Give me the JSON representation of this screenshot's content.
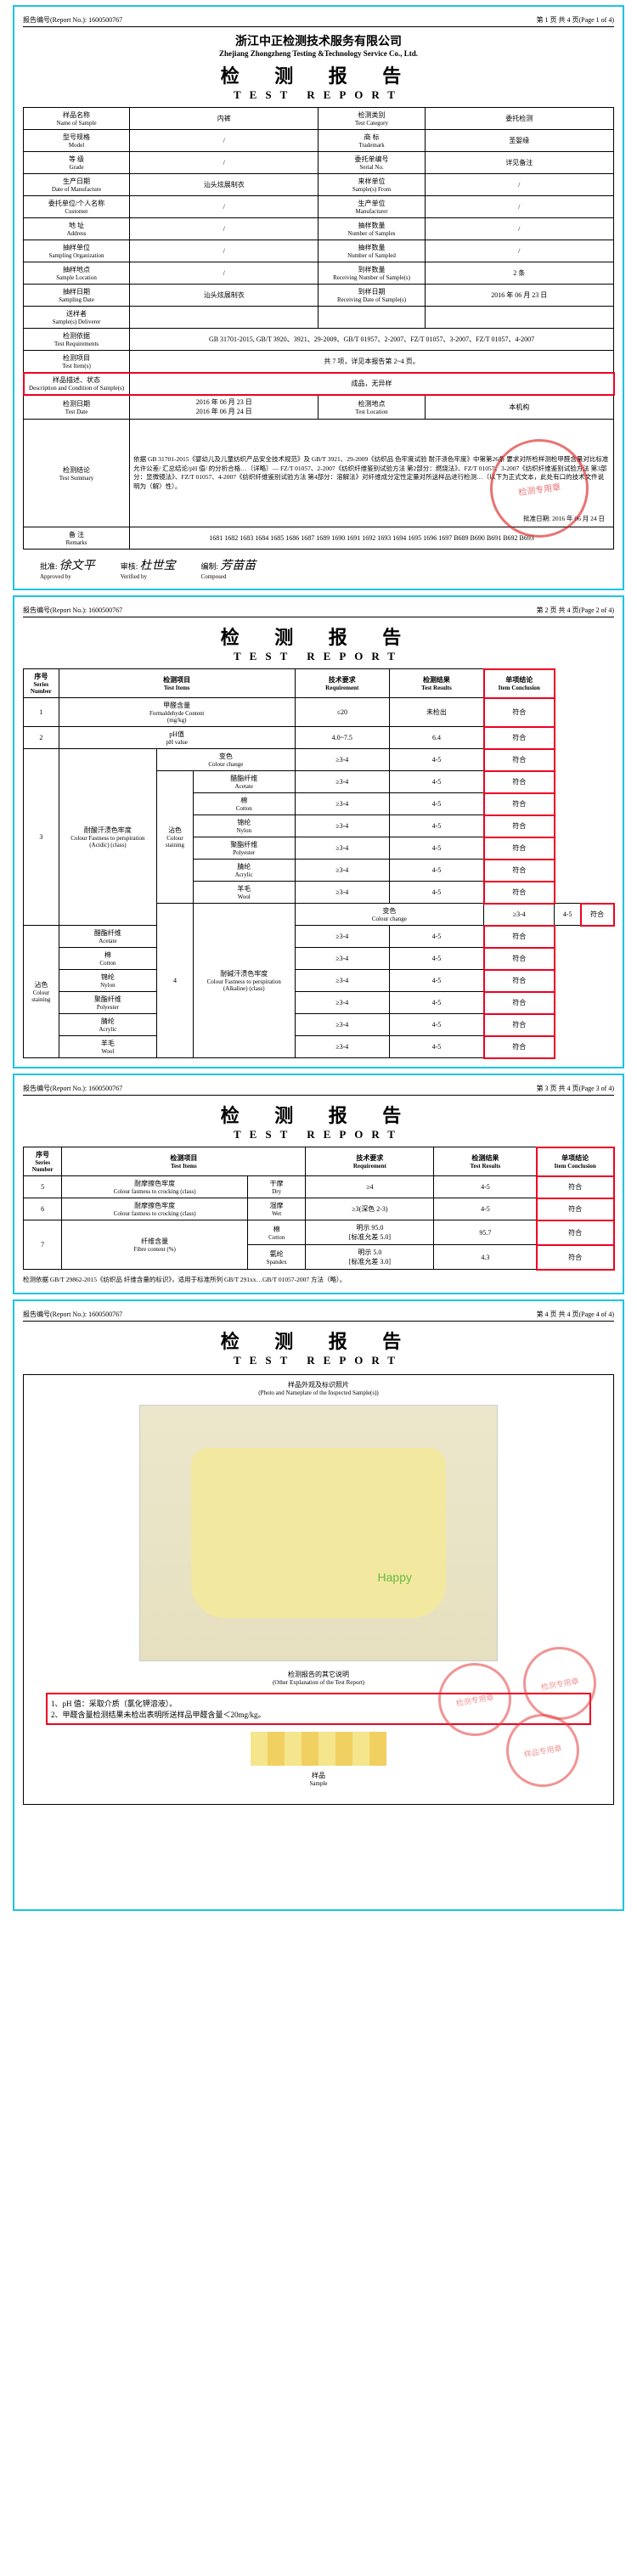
{
  "report_no_label": "报告编号(Report No.):",
  "report_no": "1600500767",
  "company": {
    "cn": "浙江中正检测技术服务有限公司",
    "en": "Zhejiang Zhongzheng Testing &Technology Service Co., Ltd."
  },
  "title": {
    "cn": "检 测 报 告",
    "en": "TEST REPORT"
  },
  "pages": {
    "p1": "第 1 页 共 4 页(Page 1 of 4)",
    "p2": "第 2 页 共 4 页(Page 2 of 4)",
    "p3": "第 3 页 共 4 页(Page 3 of 4)",
    "p4": "第 4 页 共 4 页(Page 4 of 4)"
  },
  "info_rows": [
    {
      "l1_cn": "样品名称",
      "l1_en": "Name of Sample",
      "v1": "内裤",
      "l2_cn": "检测类别",
      "l2_en": "Test Category",
      "v2": "委托检测"
    },
    {
      "l1_cn": "型号规格",
      "l1_en": "Model",
      "v1": "/",
      "l2_cn": "商 标",
      "l2_en": "Trademark",
      "v2": "圣婴缘"
    },
    {
      "l1_cn": "等 级",
      "l1_en": "Grade",
      "v1": "/",
      "l2_cn": "委托单编号",
      "l2_en": "Serial No.",
      "v2": "详见备注"
    },
    {
      "l1_cn": "生产日期",
      "l1_en": "Date of Manufacture",
      "v1": "汕头炫展制衣",
      "l2_cn": "来样单位",
      "l2_en": "Sample(s) From",
      "v2": "/"
    },
    {
      "l1_cn": "委托单位/个人名称",
      "l1_en": "Customer",
      "v1": "/",
      "l2_cn": "生产单位",
      "l2_en": "Manufacturer",
      "v2": "/"
    },
    {
      "l1_cn": "地 址",
      "l1_en": "Address",
      "v1": "/",
      "l2_cn": "抽样数量",
      "l2_en": "Number of Samples",
      "v2": "/"
    },
    {
      "l1_cn": "抽样单位",
      "l1_en": "Sampling Organization",
      "v1": "/",
      "l2_cn": "抽样数量",
      "l2_en": "Number of Sampled",
      "v2": "/"
    },
    {
      "l1_cn": "抽样地点",
      "l1_en": "Sample Location",
      "v1": "/",
      "l2_cn": "到样数量",
      "l2_en": "Receiving Number of Sample(s)",
      "v2": "2 条"
    },
    {
      "l1_cn": "抽样日期",
      "l1_en": "Sampling Date",
      "v1": "汕头炫展制衣",
      "l2_cn": "到样日期",
      "l2_en": "Receiving Date of Sample(s)",
      "v2": "2016 年 06 月 23 日"
    },
    {
      "l1_cn": "送样者",
      "l1_en": "Sample(s) Deliverer",
      "v1": "",
      "l2_cn": "",
      "l2_en": "",
      "v2": ""
    }
  ],
  "test_req": {
    "label_cn": "检测依据",
    "label_en": "Test Requirements",
    "value": "GB 31701-2015, GB/T 3920、3921、29-2009、GB/T 01957、2-2007、FZ/T 01057、3-2007、FZ/T 01057、4-2007"
  },
  "test_items": {
    "label_cn": "检测项目",
    "label_en": "Test Item(s)",
    "value": "共 7 项，详见本报告第 2~4 页。"
  },
  "sample_desc": {
    "label_cn": "样品描述、状态",
    "label_en": "Description and Condition of Sample(s)",
    "value": "成品，无异样"
  },
  "test_date": {
    "label_cn": "检测日期",
    "label_en": "Test Date",
    "from": "2016 年 06 月 23 日",
    "to": "2016 年 06 月 24 日",
    "loc_label_cn": "检测地点",
    "loc_label_en": "Test Location",
    "loc": "本机构"
  },
  "conclusion": {
    "label_cn": "检测结论",
    "label_en": "Test Summary",
    "text": "依据 GB 31701-2015《婴幼儿及儿童纺织产品安全技术规范》及 GB/T 3921、29-2009《纺织品 色牢度试验 耐汗渍色牢度》中第第26条 要求对所检样测检甲醛含量对比标准允许公差/ 汇总结论/pH 值/ 的分析合格…（详略）— FZ/T 01057、2-2007《纺织纤维鉴别试验方法 第2部分：燃烧法》、FZ/T 01057、3-2007《纺织纤维鉴别试验方法 第3部分：显微镜法》、FZ/T 01057、4-2007《纺织纤维鉴别试验方法 第4部分：溶解法》对纤维成分定性定量对所送样品进行检测…（以下为正式文本，此处有口的技术文件说明为〈解〉性）。",
    "approve_label": "批准日期:",
    "approve_date": "2016 年 06 月 24 日"
  },
  "remarks": {
    "label_cn": "备 注",
    "label_en": "Remarks",
    "codes": "1681 1682 1683 1684 1685 1686 1687 1689 1690 1691 1692 1693 1694 1695 1696 1697 B689 B690 B691 B692 B693"
  },
  "sign_labels": {
    "approve": "批准:",
    "verify": "审核:",
    "compose": "编制:"
  },
  "sign_values": {
    "approve": "徐文平",
    "verify": "杜世宝",
    "compose": "芳苗苗",
    "en": {
      "approve": "Approved by",
      "verify": "Verified by",
      "compose": "Composed"
    }
  },
  "table2": {
    "headers": {
      "no_cn": "序号",
      "no_en": "Series Number",
      "item_cn": "检测项目",
      "item_en": "Test Items",
      "req_cn": "技术要求",
      "req_en": "Requirement",
      "res_cn": "检测结果",
      "res_en": "Test Results",
      "conc_cn": "单项结论",
      "conc_en": "Item Conclusion"
    },
    "r1": {
      "no": "1",
      "item_cn": "甲醛含量",
      "item_en": "Formaldehyde Content",
      "unit": "(mg/kg)",
      "req": "≤20",
      "res": "未检出",
      "conc": "符合"
    },
    "r2": {
      "no": "2",
      "item_cn": "pH值",
      "item_en": "pH value",
      "req": "4.0~7.5",
      "res": "6.4",
      "conc": "符合"
    },
    "section3": {
      "no": "3",
      "name_cn": "耐酸汗渍色牢度",
      "name_en": "Colour Fastness to perspiration (Acidic) (class)",
      "cc": {
        "cn": "变色",
        "en": "Colour change",
        "req": "≥3-4",
        "res": "4-5",
        "conc": "符合"
      },
      "stain_label": {
        "cn": "沾色",
        "en": "Colour staining"
      },
      "rows": [
        {
          "cn": "醋酯纤维",
          "en": "Acetate",
          "req": "≥3-4",
          "res": "4-5",
          "conc": "符合"
        },
        {
          "cn": "棉",
          "en": "Cotton",
          "req": "≥3-4",
          "res": "4-5",
          "conc": "符合"
        },
        {
          "cn": "锦纶",
          "en": "Nylon",
          "req": "≥3-4",
          "res": "4-5",
          "conc": "符合"
        },
        {
          "cn": "聚酯纤维",
          "en": "Polyester",
          "req": "≥3-4",
          "res": "4-5",
          "conc": "符合"
        },
        {
          "cn": "腈纶",
          "en": "Acrylic",
          "req": "≥3-4",
          "res": "4-5",
          "conc": "符合"
        },
        {
          "cn": "羊毛",
          "en": "Wool",
          "req": "≥3-4",
          "res": "4-5",
          "conc": "符合"
        }
      ]
    },
    "section4": {
      "no": "4",
      "name_cn": "耐碱汗渍色牢度",
      "name_en": "Colour Fastness to perspiration (Alkaline) (class)",
      "cc": {
        "cn": "变色",
        "en": "Colour change",
        "req": "≥3-4",
        "res": "4-5",
        "conc": "符合"
      },
      "stain_label": {
        "cn": "沾色",
        "en": "Colour staining"
      },
      "rows": [
        {
          "cn": "醋酯纤维",
          "en": "Acetate",
          "req": "≥3-4",
          "res": "4-5",
          "conc": "符合"
        },
        {
          "cn": "棉",
          "en": "Cotton",
          "req": "≥3-4",
          "res": "4-5",
          "conc": "符合"
        },
        {
          "cn": "锦纶",
          "en": "Nylon",
          "req": "≥3-4",
          "res": "4-5",
          "conc": "符合"
        },
        {
          "cn": "聚酯纤维",
          "en": "Polyester",
          "req": "≥3-4",
          "res": "4-5",
          "conc": "符合"
        },
        {
          "cn": "腈纶",
          "en": "Acrylic",
          "req": "≥3-4",
          "res": "4-5",
          "conc": "符合"
        },
        {
          "cn": "羊毛",
          "en": "Wool",
          "req": "≥3-4",
          "res": "4-5",
          "conc": "符合"
        }
      ]
    }
  },
  "table3": {
    "r5": {
      "no": "5",
      "name_cn": "耐摩擦色牢度",
      "name_en": "Colour fastness to crocking (class)",
      "cond_cn": "干摩",
      "cond_en": "Dry",
      "req": "≥4",
      "res": "4-5",
      "conc": "符合"
    },
    "r6": {
      "no": "6",
      "name_cn": "耐摩擦色牢度",
      "name_en": "Colour fastness to crocking (class)",
      "cond_cn": "湿摩",
      "cond_en": "Wet",
      "req": "≥3(深色 2-3)",
      "res": "4-5",
      "conc": "符合"
    },
    "r7": {
      "no": "7",
      "name_cn": "纤维含量",
      "name_en": "Fibre content (%)",
      "rows": [
        {
          "cn": "棉",
          "en": "Cotton",
          "req": "明示 95.0",
          "tol": "[标准允差 5.0]",
          "res": "95.7",
          "conc": "符合"
        },
        {
          "cn": "氨纶",
          "en": "Spandex",
          "req": "明示 5.0",
          "tol": "[标准允差 3.0]",
          "res": "4.3",
          "conc": "符合"
        }
      ]
    },
    "footnote": "检测依据 GB/T 29862-2015《纺织品 纤维含量的标识》，适用于标准所列 GB/T 291xx…GB/T 01057-2007 方法（略）。"
  },
  "page4": {
    "photo_caption_cn": "样品外观及标识照片",
    "photo_caption_en": "(Photo and Nameplate of the Inspected Sample(s))",
    "other_title_cn": "检测报告的其它说明",
    "other_title_en": "(Other Explanation of the Test Report)",
    "notes": "1、pH 值：采取介质（氯化钾溶液）。\n2、甲醛含量检测结果未检出表明所送样品甲醛含量＜20mg/kg。",
    "sample_label_cn": "样品",
    "sample_label_en": "Sample"
  },
  "stamp_text": "检测专用章",
  "stamp_sample": "样品专用章",
  "colors": {
    "border": "#1cc4e6",
    "red": "#e02020",
    "stamp": "rgba(220,20,20,.6)"
  }
}
